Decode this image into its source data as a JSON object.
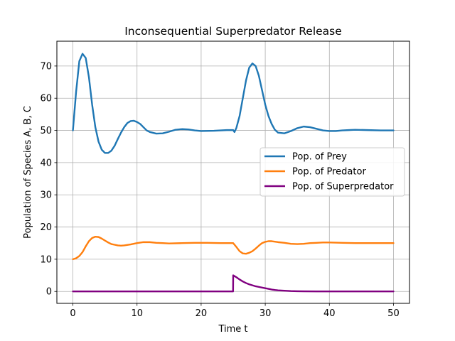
{
  "chart_data": {
    "type": "line",
    "title": "Inconsequential Superpredator Release",
    "xlabel": "Time t",
    "ylabel": "Population of Species A,  B,  C",
    "xlim": [
      -2.5,
      52.5
    ],
    "ylim": [
      -3.7,
      77.7
    ],
    "xticks": [
      0,
      10,
      20,
      30,
      40,
      50
    ],
    "yticks": [
      0,
      10,
      20,
      30,
      40,
      50,
      60,
      70
    ],
    "grid": true,
    "legend_position": "center-right",
    "series": [
      {
        "name": "Pop. of Prey",
        "color": "#1f77b4",
        "points": [
          [
            0,
            50
          ],
          [
            0.5,
            62
          ],
          [
            1,
            71.5
          ],
          [
            1.5,
            73.8
          ],
          [
            2,
            72.5
          ],
          [
            2.5,
            66.5
          ],
          [
            3,
            58
          ],
          [
            3.5,
            51
          ],
          [
            4,
            46.5
          ],
          [
            4.5,
            44
          ],
          [
            5,
            43
          ],
          [
            5.5,
            43
          ],
          [
            6,
            43.7
          ],
          [
            6.5,
            45.2
          ],
          [
            7,
            47.3
          ],
          [
            7.5,
            49.3
          ],
          [
            8,
            51
          ],
          [
            8.5,
            52.3
          ],
          [
            9,
            52.9
          ],
          [
            9.5,
            53
          ],
          [
            10,
            52.6
          ],
          [
            10.5,
            52
          ],
          [
            11,
            51
          ],
          [
            11.5,
            50
          ],
          [
            12,
            49.5
          ],
          [
            13,
            49
          ],
          [
            14,
            49.1
          ],
          [
            15,
            49.6
          ],
          [
            16,
            50.2
          ],
          [
            17,
            50.4
          ],
          [
            18,
            50.3
          ],
          [
            19,
            50
          ],
          [
            20,
            49.8
          ],
          [
            22,
            49.9
          ],
          [
            24,
            50.1
          ],
          [
            25,
            50.1
          ],
          [
            25.2,
            49.5
          ],
          [
            25.5,
            50.8
          ],
          [
            26,
            54.5
          ],
          [
            26.5,
            60
          ],
          [
            27,
            65.5
          ],
          [
            27.5,
            69.5
          ],
          [
            28,
            70.8
          ],
          [
            28.5,
            70
          ],
          [
            29,
            67
          ],
          [
            29.5,
            62.5
          ],
          [
            30,
            58
          ],
          [
            30.5,
            54.5
          ],
          [
            31,
            52
          ],
          [
            31.5,
            50.2
          ],
          [
            32,
            49.3
          ],
          [
            33,
            49.1
          ],
          [
            34,
            49.8
          ],
          [
            35,
            50.7
          ],
          [
            36,
            51.2
          ],
          [
            37,
            51
          ],
          [
            38,
            50.5
          ],
          [
            39,
            50
          ],
          [
            40,
            49.8
          ],
          [
            41,
            49.8
          ],
          [
            42,
            50
          ],
          [
            43,
            50.1
          ],
          [
            44,
            50.2
          ],
          [
            46,
            50.1
          ],
          [
            48,
            50
          ],
          [
            50,
            50
          ]
        ]
      },
      {
        "name": "Pop. of Predator",
        "color": "#ff7f0e",
        "points": [
          [
            0,
            10
          ],
          [
            0.5,
            10.3
          ],
          [
            1,
            11
          ],
          [
            1.5,
            12.2
          ],
          [
            2,
            14
          ],
          [
            2.5,
            15.6
          ],
          [
            3,
            16.6
          ],
          [
            3.5,
            17
          ],
          [
            4,
            16.9
          ],
          [
            4.5,
            16.4
          ],
          [
            5,
            15.8
          ],
          [
            5.5,
            15.2
          ],
          [
            6,
            14.7
          ],
          [
            6.5,
            14.5
          ],
          [
            7,
            14.3
          ],
          [
            7.5,
            14.2
          ],
          [
            8,
            14.3
          ],
          [
            9,
            14.6
          ],
          [
            10,
            15
          ],
          [
            11,
            15.3
          ],
          [
            12,
            15.3
          ],
          [
            13,
            15.1
          ],
          [
            14,
            15
          ],
          [
            15,
            14.9
          ],
          [
            17,
            15
          ],
          [
            19,
            15.1
          ],
          [
            21,
            15.1
          ],
          [
            23,
            15
          ],
          [
            25,
            15
          ],
          [
            25.5,
            13.8
          ],
          [
            26,
            12.5
          ],
          [
            26.5,
            11.8
          ],
          [
            27,
            11.7
          ],
          [
            27.5,
            12
          ],
          [
            28,
            12.5
          ],
          [
            28.5,
            13.3
          ],
          [
            29,
            14.2
          ],
          [
            29.5,
            15
          ],
          [
            30,
            15.4
          ],
          [
            30.5,
            15.6
          ],
          [
            31,
            15.6
          ],
          [
            32,
            15.3
          ],
          [
            33,
            15.1
          ],
          [
            34,
            14.8
          ],
          [
            35,
            14.7
          ],
          [
            36,
            14.8
          ],
          [
            37,
            15
          ],
          [
            38,
            15.1
          ],
          [
            39,
            15.2
          ],
          [
            40,
            15.2
          ],
          [
            42,
            15.1
          ],
          [
            44,
            15
          ],
          [
            47,
            15
          ],
          [
            50,
            15
          ]
        ]
      },
      {
        "name": "Pop. of Superpredator",
        "color": "#800080",
        "points": [
          [
            0,
            0
          ],
          [
            5,
            0
          ],
          [
            10,
            0
          ],
          [
            15,
            0
          ],
          [
            20,
            0
          ],
          [
            24.98,
            0
          ],
          [
            25,
            5
          ],
          [
            25.5,
            4.4
          ],
          [
            26,
            3.7
          ],
          [
            26.5,
            3.1
          ],
          [
            27,
            2.6
          ],
          [
            27.5,
            2.2
          ],
          [
            28,
            1.9
          ],
          [
            28.5,
            1.6
          ],
          [
            29,
            1.4
          ],
          [
            29.5,
            1.2
          ],
          [
            30,
            1
          ],
          [
            30.5,
            0.8
          ],
          [
            31,
            0.6
          ],
          [
            31.5,
            0.45
          ],
          [
            32,
            0.35
          ],
          [
            33,
            0.22
          ],
          [
            34,
            0.12
          ],
          [
            35,
            0.07
          ],
          [
            36,
            0.04
          ],
          [
            38,
            0.01
          ],
          [
            40,
            0
          ],
          [
            45,
            0
          ],
          [
            50,
            0
          ]
        ]
      }
    ]
  }
}
